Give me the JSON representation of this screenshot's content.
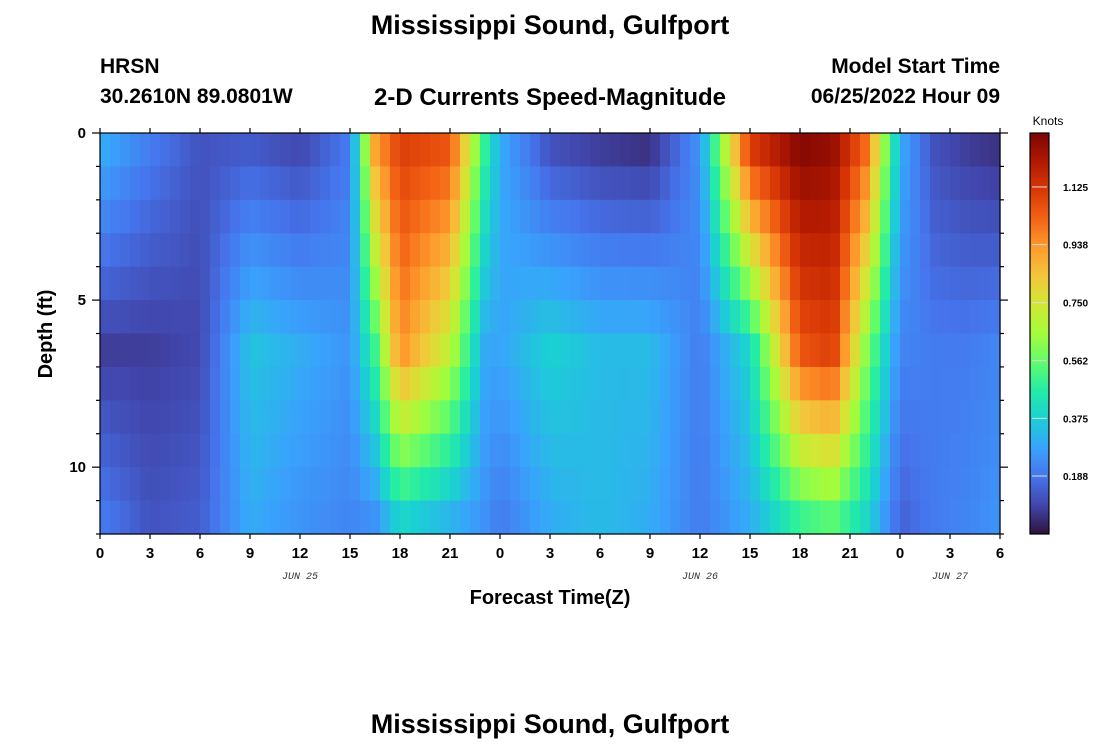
{
  "header": {
    "title": "Mississippi Sound, Gulfport",
    "station_id": "HRSN",
    "station_coords": "30.2610N  89.0801W",
    "subtitle": "2-D Currents Speed-Magnitude",
    "model_start_label": "Model Start Time",
    "model_start_value": "06/25/2022 Hour 09"
  },
  "footer": {
    "title": "Mississippi Sound, Gulfport"
  },
  "chart_data": {
    "type": "heatmap",
    "title": "Mississippi Sound, Gulfport",
    "subtitle": "2-D Currents Speed-Magnitude",
    "xlabel": "Forecast Time(Z)",
    "ylabel": "Depth (ft)",
    "x_unit": "hours from 00Z Jun 25",
    "xlim": [
      0,
      54
    ],
    "ylim": [
      0,
      12
    ],
    "y_inverted": true,
    "x_tick_labels": [
      "0",
      "3",
      "6",
      "9",
      "12",
      "15",
      "18",
      "21",
      "0",
      "3",
      "6",
      "9",
      "12",
      "15",
      "18",
      "21",
      "0",
      "3",
      "6"
    ],
    "y_tick_labels": [
      "0",
      "5",
      "10"
    ],
    "date_labels": [
      {
        "text": "JUN 25",
        "x": 12
      },
      {
        "text": "JUN 26",
        "x": 36
      },
      {
        "text": "JUN 27",
        "x": 51
      }
    ],
    "colorbar": {
      "unit": "Knots",
      "min": 0.0,
      "max": 1.3,
      "tick_labels": [
        "1.125",
        "0.938",
        "0.750",
        "0.562",
        "0.375",
        "0.188"
      ]
    },
    "colormap": [
      "#30123b",
      "#4145ab",
      "#4675ed",
      "#39a2fc",
      "#1bcfd4",
      "#24eca6",
      "#61fc6c",
      "#a4fc3b",
      "#d1e834",
      "#f3c63a",
      "#fe9b2d",
      "#f36315",
      "#d93806",
      "#b11901",
      "#7a0402"
    ],
    "depth_levels_ft": [
      0,
      1,
      2,
      3,
      4,
      5,
      6,
      7,
      8,
      9,
      10,
      11,
      12
    ],
    "approx_speed_series": [
      {
        "name": "surface (0-1 ft)",
        "x": [
          0,
          3,
          6,
          9,
          12,
          15,
          16.5,
          18,
          21,
          23,
          24,
          27,
          30,
          33,
          36,
          39,
          42,
          44,
          46,
          48,
          50,
          52,
          54
        ],
        "values": [
          0.3,
          0.2,
          0.12,
          0.14,
          0.1,
          0.2,
          0.9,
          1.1,
          1.05,
          0.5,
          0.3,
          0.12,
          0.08,
          0.06,
          0.25,
          1.1,
          1.28,
          1.25,
          1.0,
          0.3,
          0.12,
          0.08,
          0.06
        ]
      },
      {
        "name": "mid (6-7 ft)",
        "x": [
          0,
          3,
          6,
          9,
          12,
          15,
          16.5,
          18,
          21,
          23,
          24,
          27,
          30,
          33,
          36,
          39,
          42,
          44,
          46,
          48,
          50,
          52,
          54
        ],
        "values": [
          0.08,
          0.08,
          0.1,
          0.35,
          0.3,
          0.25,
          0.5,
          0.95,
          0.7,
          0.3,
          0.28,
          0.38,
          0.33,
          0.33,
          0.2,
          0.4,
          1.05,
          1.1,
          0.6,
          0.22,
          0.2,
          0.2,
          0.22
        ]
      },
      {
        "name": "bottom (11-12 ft)",
        "x": [
          0,
          3,
          6,
          9,
          12,
          15,
          16.5,
          18,
          21,
          23,
          24,
          27,
          30,
          33,
          36,
          39,
          42,
          44,
          46,
          48,
          50,
          52,
          54
        ],
        "values": [
          0.2,
          0.12,
          0.14,
          0.3,
          0.25,
          0.22,
          0.25,
          0.4,
          0.32,
          0.25,
          0.2,
          0.3,
          0.33,
          0.3,
          0.2,
          0.3,
          0.5,
          0.55,
          0.4,
          0.15,
          0.2,
          0.22,
          0.25
        ]
      }
    ]
  }
}
